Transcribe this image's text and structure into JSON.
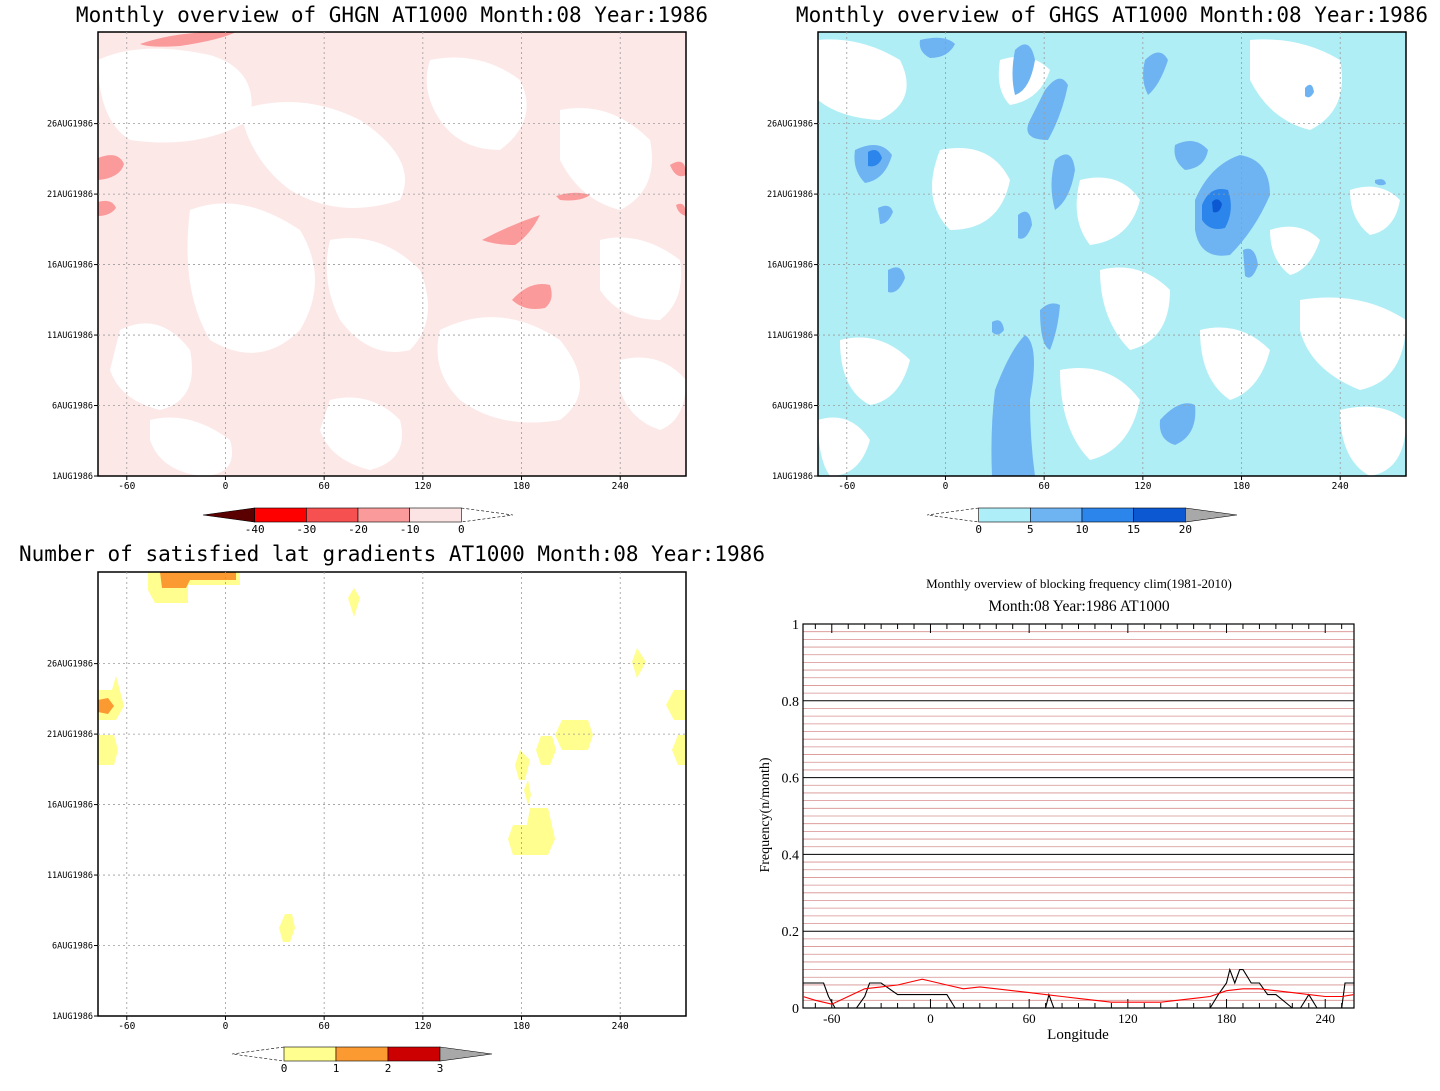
{
  "panels": [
    {
      "title": "Monthly overview of GHGN AT1000 Month:08 Year:1986",
      "x_ticks": [
        -60,
        0,
        60,
        120,
        180,
        240
      ],
      "y_ticks": [
        "1AUG1986",
        "6AUG1986",
        "11AUG1986",
        "16AUG1986",
        "21AUG1986",
        "26AUG1986"
      ],
      "colorbar": {
        "labels": [
          "-40",
          "-30",
          "-20",
          "-10",
          "0"
        ],
        "colors": [
          "#5a0000",
          "#ff0000",
          "#f65050",
          "#fa9a9a",
          "#fde4e4"
        ]
      },
      "fill_color": "#fde8e8"
    },
    {
      "title": "Monthly overview of GHGS AT1000 Month:08 Year:1986",
      "x_ticks": [
        -60,
        0,
        60,
        120,
        180,
        240
      ],
      "y_ticks": [
        "1AUG1986",
        "6AUG1986",
        "11AUG1986",
        "16AUG1986",
        "21AUG1986",
        "26AUG1986"
      ],
      "colorbar": {
        "labels": [
          "0",
          "5",
          "10",
          "15",
          "20"
        ],
        "colors": [
          "#aeeef8",
          "#6fb4f2",
          "#2c85ea",
          "#0b58d2",
          "#a8a8a8"
        ]
      },
      "fill_color": "#b0eef6"
    },
    {
      "title": "Number of satisfied lat gradients AT1000 Month:08 Year:1986",
      "x_ticks": [
        -60,
        0,
        60,
        120,
        180,
        240
      ],
      "y_ticks": [
        "1AUG1986",
        "6AUG1986",
        "11AUG1986",
        "16AUG1986",
        "21AUG1986",
        "26AUG1986"
      ],
      "colorbar": {
        "labels": [
          "0",
          "1",
          "2",
          "3"
        ],
        "colors": [
          "#fffe8e",
          "#fb9a30",
          "#cc0000",
          "#a8a8a8"
        ]
      },
      "fill_color": "#fffe8e"
    }
  ],
  "chart_data": {
    "type": "line",
    "title": "Monthly overview of blocking frequency clim(1981-2010)",
    "subtitle": "Month:08 Year:1986  AT1000",
    "xlabel": "Longitude",
    "ylabel": "Frequency(n/month)",
    "xlim": [
      -77.5,
      257.5
    ],
    "ylim": [
      0,
      1
    ],
    "x_ticks": [
      -60,
      0,
      60,
      120,
      180,
      240
    ],
    "y_ticks": [
      "0",
      "0.2",
      "0.4",
      "0.6",
      "0.8",
      "1"
    ],
    "series": [
      {
        "color": "#000000",
        "x": [
          -77.5,
          -65,
          -62,
          -58,
          -52,
          -45,
          -40,
          -37,
          -30,
          -20,
          -10,
          0,
          10,
          15,
          20,
          30,
          40,
          50,
          60,
          70,
          72,
          75,
          80,
          90,
          100,
          110,
          120,
          130,
          140,
          150,
          160,
          170,
          175,
          180,
          182,
          185,
          188,
          190,
          195,
          200,
          205,
          210,
          220,
          225,
          230,
          235,
          240,
          245,
          250,
          252,
          257.5
        ],
        "y": [
          0.065,
          0.065,
          0.03,
          0,
          0,
          0,
          0.03,
          0.065,
          0.065,
          0.035,
          0.035,
          0.035,
          0.035,
          0,
          0,
          0,
          0,
          0,
          0,
          0,
          0.035,
          0,
          0,
          0,
          0,
          0,
          0,
          0,
          0,
          0,
          0,
          0,
          0.035,
          0.065,
          0.1,
          0.065,
          0.1,
          0.1,
          0.065,
          0.065,
          0.035,
          0.035,
          0,
          0,
          0.035,
          0,
          0,
          0,
          0,
          0.065,
          0.065
        ]
      },
      {
        "color": "#ff0000",
        "x": [
          -77.5,
          -70,
          -60,
          -50,
          -40,
          -30,
          -20,
          -10,
          -5,
          0,
          10,
          20,
          30,
          40,
          50,
          60,
          70,
          80,
          90,
          100,
          110,
          120,
          130,
          140,
          150,
          160,
          170,
          180,
          190,
          200,
          210,
          220,
          230,
          240,
          250,
          257.5
        ],
        "y": [
          0.03,
          0.02,
          0.01,
          0.03,
          0.05,
          0.055,
          0.06,
          0.07,
          0.075,
          0.07,
          0.06,
          0.05,
          0.055,
          0.05,
          0.045,
          0.04,
          0.035,
          0.03,
          0.025,
          0.02,
          0.015,
          0.015,
          0.015,
          0.015,
          0.02,
          0.025,
          0.03,
          0.045,
          0.05,
          0.05,
          0.045,
          0.04,
          0.035,
          0.03,
          0.03,
          0.035
        ]
      }
    ]
  }
}
